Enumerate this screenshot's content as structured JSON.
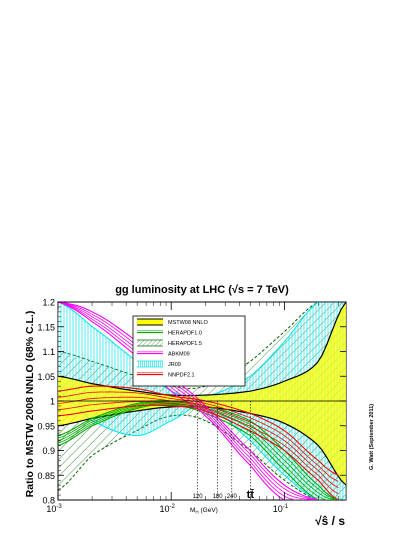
{
  "chart_data": {
    "type": "area",
    "title": "gg luminosity at LHC (√s = 7 TeV)",
    "ylabel": "Ratio to MSTW 2008 NNLO (68% C.L.)",
    "xlabel": "√ŝ / s",
    "xscale": "log",
    "xlim": [
      0.001,
      0.35
    ],
    "ylim": [
      0.8,
      1.2
    ],
    "grid": false,
    "legend_position": "top-center",
    "y_ticks": [
      {
        "value": 0.8,
        "label": "0.8"
      },
      {
        "value": 0.85,
        "label": "0.85"
      },
      {
        "value": 0.9,
        "label": "0.9"
      },
      {
        "value": 0.95,
        "label": "0.95"
      },
      {
        "value": 1.0,
        "label": "1"
      },
      {
        "value": 1.05,
        "label": "1.05"
      },
      {
        "value": 1.1,
        "label": "1.1"
      },
      {
        "value": 1.15,
        "label": "1.15"
      },
      {
        "value": 1.2,
        "label": "1.2"
      }
    ],
    "x_ticks": [
      {
        "value": 0.001,
        "base": "10",
        "exp": "-3"
      },
      {
        "value": 0.01,
        "base": "10",
        "exp": "-2"
      },
      {
        "value": 0.1,
        "base": "10",
        "exp": "-1"
      }
    ],
    "mass_markers": [
      {
        "value": 0.0171,
        "label": "120"
      },
      {
        "value": 0.0257,
        "label": "180"
      },
      {
        "value": 0.0343,
        "label": "240"
      },
      {
        "value": 0.05,
        "label": "tt̄"
      }
    ],
    "mass_axis_label": "M",
    "mass_axis_sub": "H",
    "mass_axis_unit": "(GeV)",
    "series": [
      {
        "name": "MSTW08 NNLO",
        "color": "#ffff00",
        "edge": "#000000",
        "style": "solid-fill",
        "x": [
          0.001,
          0.002,
          0.005,
          0.01,
          0.02,
          0.05,
          0.1,
          0.2,
          0.35
        ],
        "upper": [
          1.05,
          1.035,
          1.02,
          1.012,
          1.012,
          1.02,
          1.04,
          1.08,
          1.2
        ],
        "lower": [
          0.95,
          0.965,
          0.98,
          0.988,
          0.988,
          0.975,
          0.955,
          0.91,
          0.83
        ]
      },
      {
        "name": "HERAPDF1.0",
        "color": "#00aa00",
        "edge": "#00aa00",
        "style": "lines",
        "x": [
          0.001,
          0.002,
          0.005,
          0.01,
          0.02,
          0.05,
          0.1,
          0.2,
          0.3
        ],
        "upper": [
          0.93,
          0.965,
          0.995,
          1.0,
          0.99,
          0.96,
          0.9,
          0.83,
          0.8
        ],
        "lower": [
          0.91,
          0.95,
          0.985,
          0.992,
          0.975,
          0.93,
          0.86,
          0.8,
          0.8
        ]
      },
      {
        "name": "HERAPDF1.5",
        "color": "#006400",
        "edge": "#006400",
        "style": "hatch",
        "x": [
          0.001,
          0.002,
          0.005,
          0.01,
          0.02,
          0.05,
          0.1,
          0.2,
          0.35
        ],
        "upper": [
          1.1,
          1.08,
          1.05,
          1.03,
          1.03,
          1.08,
          1.14,
          1.2,
          1.2
        ],
        "lower": [
          0.82,
          0.89,
          0.94,
          0.97,
          0.96,
          0.9,
          0.84,
          0.8,
          0.8
        ]
      },
      {
        "name": "ABKM09",
        "color": "#ff00ff",
        "edge": "#ff00ff",
        "style": "lines",
        "x": [
          0.001,
          0.002,
          0.005,
          0.01,
          0.02,
          0.05,
          0.1,
          0.2
        ],
        "upper": [
          1.2,
          1.18,
          1.12,
          1.05,
          0.99,
          0.9,
          0.83,
          0.8
        ],
        "lower": [
          1.2,
          1.16,
          1.09,
          1.02,
          0.97,
          0.87,
          0.8,
          0.8
        ]
      },
      {
        "name": "JR09",
        "color": "#00e5ee",
        "edge": "#00e5ee",
        "style": "vhatch",
        "x": [
          0.001,
          0.002,
          0.005,
          0.01,
          0.02,
          0.05,
          0.1,
          0.2,
          0.35
        ],
        "upper": [
          1.2,
          1.15,
          1.08,
          1.02,
          1.01,
          1.05,
          1.12,
          1.2,
          1.2
        ],
        "lower": [
          1.02,
          0.96,
          0.93,
          0.96,
          0.99,
          0.92,
          0.85,
          0.8,
          0.8
        ]
      },
      {
        "name": "NNPDF2.1",
        "color": "#ff0000",
        "edge": "#ff0000",
        "style": "lines",
        "x": [
          0.001,
          0.002,
          0.005,
          0.01,
          0.02,
          0.05,
          0.1,
          0.2,
          0.3
        ],
        "upper": [
          1.02,
          1.03,
          1.025,
          1.01,
          1.0,
          0.975,
          0.94,
          0.88,
          0.85
        ],
        "lower": [
          0.97,
          0.98,
          0.99,
          0.99,
          0.98,
          0.94,
          0.9,
          0.84,
          0.8
        ]
      }
    ],
    "annotation": {
      "author": "G. Watt",
      "date": "(September 2011)"
    }
  }
}
